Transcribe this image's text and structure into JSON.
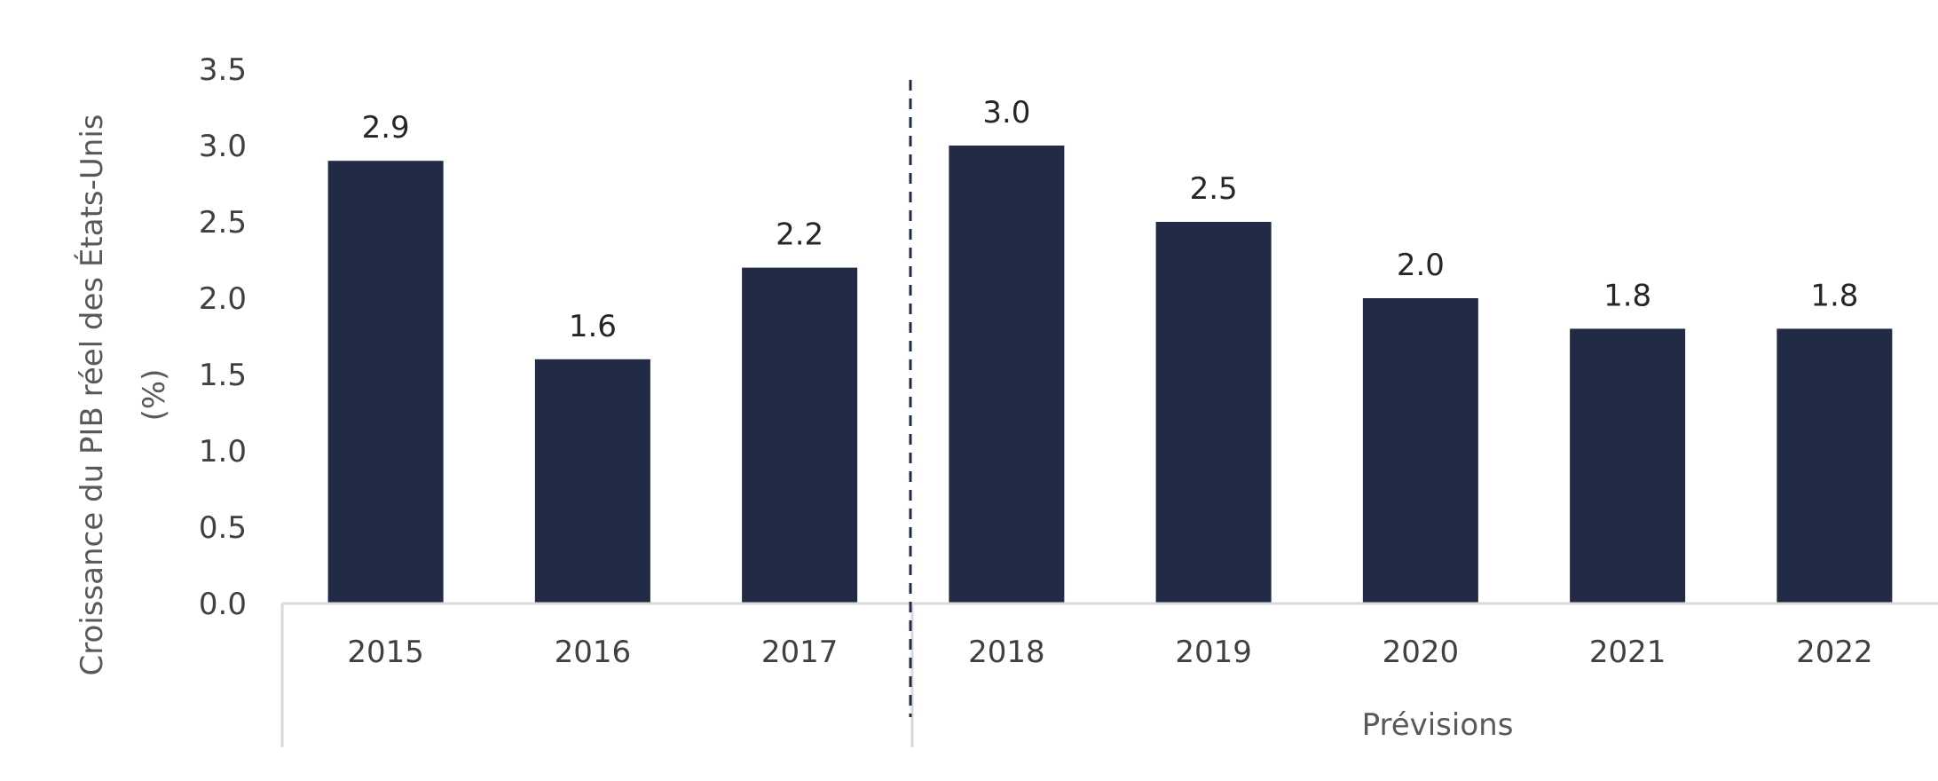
{
  "chart_data": {
    "type": "bar",
    "categories": [
      "2015",
      "2016",
      "2017",
      "2018",
      "2019",
      "2020",
      "2021",
      "2022"
    ],
    "values": [
      2.9,
      1.6,
      2.2,
      3.0,
      2.5,
      2.0,
      1.8,
      1.8
    ],
    "data_labels": [
      "2.9",
      "1.6",
      "2.2",
      "3.0",
      "2.5",
      "2.0",
      "1.8",
      "1.8"
    ],
    "yticks": [
      "0.0",
      "0.5",
      "1.0",
      "1.5",
      "2.0",
      "2.5",
      "3.0",
      "3.5"
    ],
    "ylim": [
      0,
      3.5
    ],
    "ylabel_line1": "Croissance du PIB réel des États-Unis",
    "ylabel_line2": "(%)",
    "group_label": "Prévisions",
    "forecast_start_index": 3,
    "bar_color": "#212B45",
    "grid": false
  }
}
